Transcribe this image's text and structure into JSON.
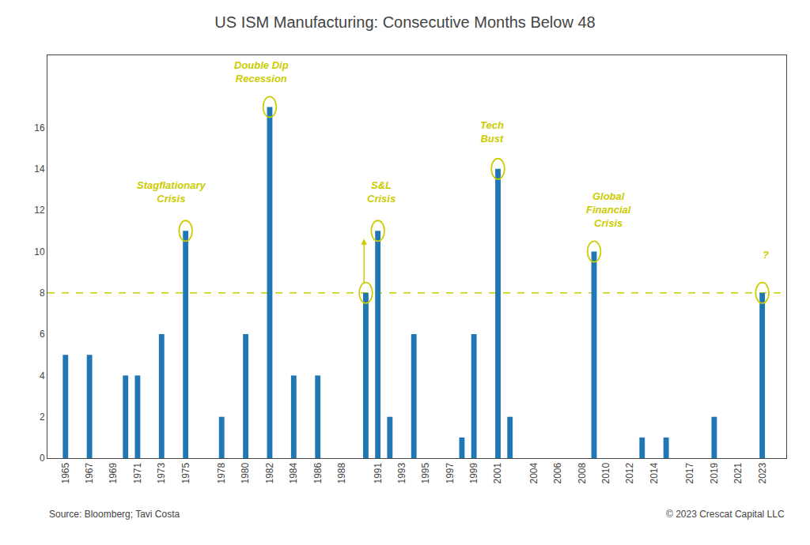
{
  "chart_data": {
    "type": "bar",
    "title": "US ISM Manufacturing: Consecutive Months Below 48",
    "x": [
      1965,
      1966,
      1967,
      1968,
      1969,
      1970,
      1971,
      1972,
      1973,
      1974,
      1975,
      1976,
      1977,
      1978,
      1979,
      1980,
      1981,
      1982,
      1983,
      1984,
      1985,
      1986,
      1987,
      1988,
      1989,
      1990,
      1991,
      1992,
      1993,
      1994,
      1995,
      1996,
      1997,
      1998,
      1999,
      2000,
      2001,
      2002,
      2003,
      2004,
      2005,
      2006,
      2007,
      2008,
      2009,
      2010,
      2011,
      2012,
      2013,
      2014,
      2015,
      2016,
      2017,
      2018,
      2019,
      2020,
      2021,
      2022,
      2023
    ],
    "values": [
      5,
      0,
      5,
      0,
      0,
      4,
      4,
      0,
      6,
      0,
      11,
      0,
      0,
      2,
      0,
      6,
      0,
      17,
      0,
      4,
      0,
      4,
      0,
      0,
      0,
      8,
      11,
      2,
      0,
      6,
      0,
      0,
      0,
      1,
      6,
      0,
      14,
      2,
      0,
      0,
      0,
      0,
      0,
      0,
      10,
      0,
      0,
      0,
      1,
      0,
      1,
      0,
      0,
      0,
      2,
      0,
      0,
      0,
      8
    ],
    "xlim": [
      1963.5,
      2025
    ],
    "xticks": [
      1965,
      1967,
      1969,
      1971,
      1973,
      1975,
      1978,
      1980,
      1982,
      1984,
      1986,
      1988,
      1991,
      1993,
      1995,
      1997,
      1999,
      2001,
      2004,
      2006,
      2008,
      2010,
      2012,
      2014,
      2017,
      2019,
      2021,
      2023
    ],
    "ylim": [
      0,
      19.5
    ],
    "yticks": [
      0,
      2,
      4,
      6,
      8,
      10,
      12,
      14,
      16
    ],
    "grid": false,
    "reference_line": {
      "y": 8,
      "color": "#cccc00",
      "line_style": "dashed"
    },
    "annotations": [
      {
        "text": "Stagflationary\nCrisis",
        "x": 1973.8,
        "y": 12.2,
        "color": "#cccc00",
        "circles": [
          {
            "x": 1975,
            "y": 11
          }
        ]
      },
      {
        "text": "Double Dip\nRecession",
        "x": 1981.3,
        "y": 18.0,
        "color": "#cccc00",
        "circles": [
          {
            "x": 1982,
            "y": 17
          }
        ]
      },
      {
        "text": "S&L\nCrisis",
        "x": 1991.3,
        "y": 12.2,
        "color": "#cccc00",
        "circles": [
          {
            "x": 1991,
            "y": 11
          },
          {
            "x": 1990,
            "y": 8
          }
        ],
        "arrow": {
          "x": 1989.85,
          "y_start": 8.38,
          "y_end": 10.62
        }
      },
      {
        "text": "Tech\nBust",
        "x": 2000.5,
        "y": 15.1,
        "color": "#cccc00",
        "circles": [
          {
            "x": 2001,
            "y": 14
          }
        ]
      },
      {
        "text": "Global\nFinancial\nCrisis",
        "x": 2010.2,
        "y": 11.0,
        "color": "#cccc00",
        "circles": [
          {
            "x": 2009,
            "y": 10
          }
        ]
      },
      {
        "text": "?",
        "x": 2023.3,
        "y": 9.5,
        "color": "#cccc00",
        "circles": [
          {
            "x": 2023,
            "y": 8
          }
        ]
      }
    ],
    "source": "Source: Bloomberg; Tavi Costa",
    "copyright": "© 2023 Crescat Capital LLC"
  }
}
